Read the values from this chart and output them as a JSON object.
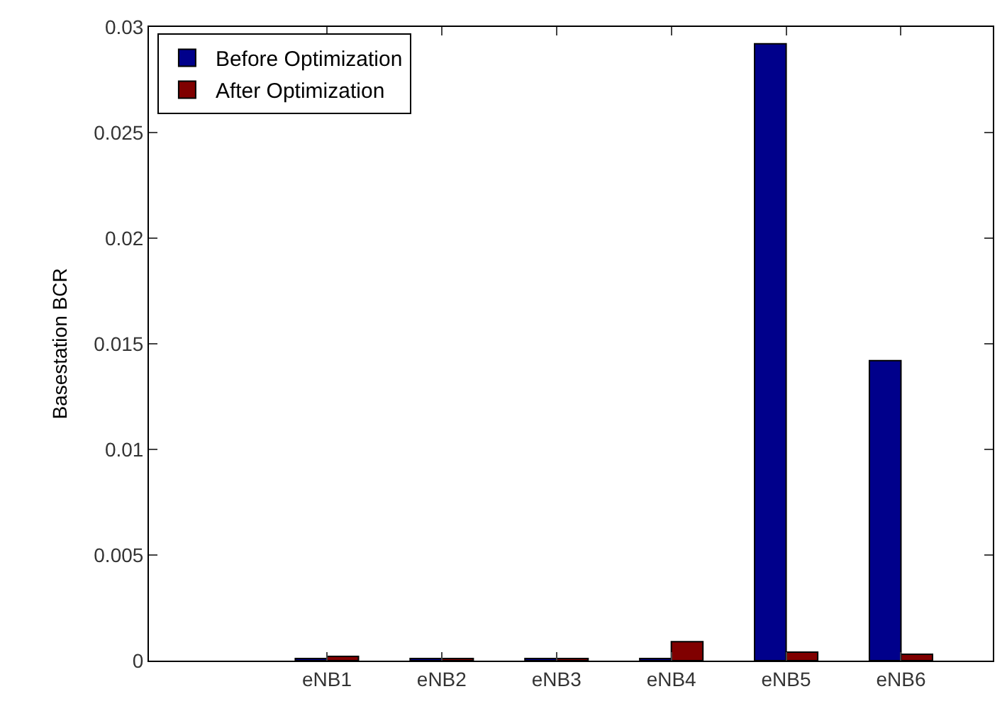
{
  "chart_data": {
    "type": "bar",
    "ylabel": "Basestation BCR",
    "categories": [
      "eNB1",
      "eNB2",
      "eNB3",
      "eNB4",
      "eNB5",
      "eNB6"
    ],
    "series": [
      {
        "name": "Before Optimization",
        "color": "#00008b",
        "values": [
          0.0001,
          0.0001,
          0.0001,
          0.0001,
          0.0292,
          0.0142
        ]
      },
      {
        "name": "After Optimization",
        "color": "#800000",
        "values": [
          0.0002,
          0.0001,
          0.0001,
          0.0009,
          0.0004,
          0.0003
        ]
      }
    ],
    "ylim": [
      0,
      0.03
    ],
    "yticks": [
      0,
      0.005,
      0.01,
      0.015,
      0.02,
      0.025,
      0.03
    ],
    "legend": "top left"
  }
}
